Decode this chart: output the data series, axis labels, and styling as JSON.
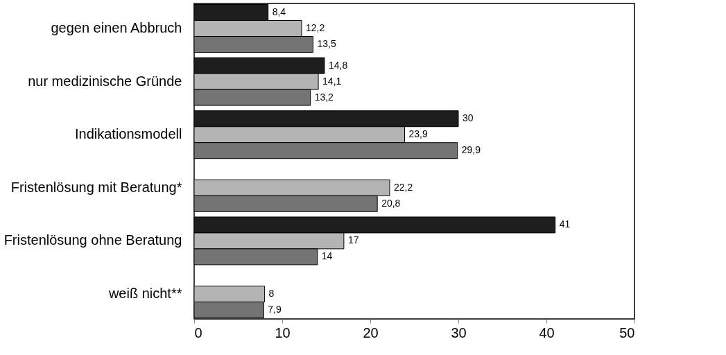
{
  "chart_data": {
    "type": "bar",
    "orientation": "horizontal",
    "categories": [
      "gegen einen Abbruch",
      "nur medizinische Gründe",
      "Indikationsmodell",
      "Fristenlösung mit Beratung*",
      "Fristenlösung ohne Beratung",
      "weiß nicht**"
    ],
    "series": [
      {
        "color": "#1e1e1e",
        "values": [
          8.4,
          14.8,
          30,
          null,
          41,
          null
        ],
        "value_labels": [
          "8,4",
          "14,8",
          "30",
          null,
          "41",
          null
        ]
      },
      {
        "color": "#b4b4b4",
        "values": [
          12.2,
          14.1,
          23.9,
          22.2,
          17,
          8
        ],
        "value_labels": [
          "12,2",
          "14,1",
          "23,9",
          "22,2",
          "17",
          "8"
        ]
      },
      {
        "color": "#747474",
        "values": [
          13.5,
          13.2,
          29.9,
          20.8,
          14,
          7.9
        ],
        "value_labels": [
          "13,5",
          "13,2",
          "29,9",
          "20,8",
          "14",
          "7,9"
        ]
      }
    ],
    "xlim": [
      0,
      50
    ],
    "xticks": [
      0,
      10,
      20,
      30,
      40,
      50
    ],
    "grid": false,
    "legend": false
  }
}
